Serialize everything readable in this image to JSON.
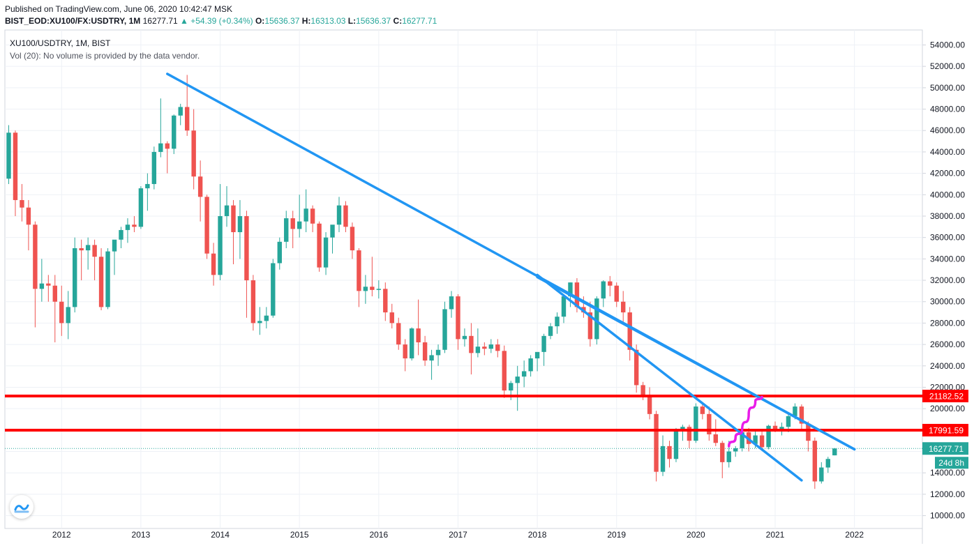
{
  "header": {
    "published": "Published on TradingView.com, June 06, 2020 10:42:47 MSK"
  },
  "symbol_line": {
    "symbol": "BIST_EOD:XU100/FX:USDTRY, 1M",
    "last": "16277.71",
    "change": "▲ +54.39 (+0.34%)",
    "o_label": "O:",
    "o": "15636.37",
    "h_label": "H:",
    "h": "16313.03",
    "l_label": "L:",
    "l": "15636.37",
    "c_label": "C:",
    "c": "16277.71"
  },
  "pane": {
    "title": "XU100/USDTRY, 1M, BIST",
    "volume_note": "Vol (20): No volume is provided by the data vendor."
  },
  "price_labels": {
    "resistance_upper": "21182.52",
    "resistance_lower": "17991.59",
    "last_price": "16277.71",
    "countdown": "24d 8h"
  },
  "colors": {
    "up": "#26a69a",
    "down": "#ef5350",
    "trendline": "#2196f3",
    "hline": "#ff0000",
    "projection": "#e91ce9",
    "grid": "#eef1f6",
    "axis_text": "#131722"
  },
  "chart_data": {
    "type": "candlestick",
    "title": "XU100/USDTRY, 1M, BIST",
    "interval": "1M",
    "x_ticks": [
      "2012",
      "2013",
      "2014",
      "2015",
      "2016",
      "2017",
      "2018",
      "2019",
      "2020",
      "2021",
      "2022"
    ],
    "y_ticks": [
      10000,
      12000,
      14000,
      16000,
      18000,
      20000,
      22000,
      24000,
      26000,
      28000,
      30000,
      32000,
      34000,
      36000,
      38000,
      40000,
      42000,
      44000,
      46000,
      48000,
      50000,
      52000,
      54000
    ],
    "y_range": [
      8800,
      55400
    ],
    "grid": true,
    "candles": [
      {
        "t": "2011-05",
        "o": 41500,
        "h": 46500,
        "l": 41000,
        "c": 45800
      },
      {
        "t": "2011-06",
        "o": 45800,
        "h": 46000,
        "l": 38000,
        "c": 39500
      },
      {
        "t": "2011-07",
        "o": 39500,
        "h": 41000,
        "l": 37500,
        "c": 38800
      },
      {
        "t": "2011-08",
        "o": 38800,
        "h": 39500,
        "l": 34800,
        "c": 37200
      },
      {
        "t": "2011-09",
        "o": 37200,
        "h": 37500,
        "l": 27600,
        "c": 31200
      },
      {
        "t": "2011-10",
        "o": 31200,
        "h": 34000,
        "l": 30000,
        "c": 31700
      },
      {
        "t": "2011-11",
        "o": 31700,
        "h": 32500,
        "l": 30000,
        "c": 31500
      },
      {
        "t": "2011-12",
        "o": 31500,
        "h": 32500,
        "l": 26200,
        "c": 30000
      },
      {
        "t": "2012-01",
        "o": 30000,
        "h": 31500,
        "l": 26800,
        "c": 28000
      },
      {
        "t": "2012-02",
        "o": 28000,
        "h": 31000,
        "l": 26500,
        "c": 29500
      },
      {
        "t": "2012-03",
        "o": 29500,
        "h": 36000,
        "l": 29000,
        "c": 35000
      },
      {
        "t": "2012-04",
        "o": 35000,
        "h": 35800,
        "l": 32000,
        "c": 34800
      },
      {
        "t": "2012-05",
        "o": 34800,
        "h": 36000,
        "l": 33000,
        "c": 35300
      },
      {
        "t": "2012-06",
        "o": 35300,
        "h": 35800,
        "l": 32000,
        "c": 34200
      },
      {
        "t": "2012-07",
        "o": 34200,
        "h": 35000,
        "l": 29200,
        "c": 29500
      },
      {
        "t": "2012-08",
        "o": 29500,
        "h": 35000,
        "l": 29300,
        "c": 34700
      },
      {
        "t": "2012-09",
        "o": 34700,
        "h": 35500,
        "l": 32500,
        "c": 35800
      },
      {
        "t": "2012-10",
        "o": 35800,
        "h": 37000,
        "l": 35000,
        "c": 36700
      },
      {
        "t": "2012-11",
        "o": 36700,
        "h": 37800,
        "l": 35500,
        "c": 37200
      },
      {
        "t": "2012-12",
        "o": 37200,
        "h": 38000,
        "l": 36500,
        "c": 37000
      },
      {
        "t": "2013-01",
        "o": 37000,
        "h": 40800,
        "l": 36800,
        "c": 40600
      },
      {
        "t": "2013-02",
        "o": 40600,
        "h": 42000,
        "l": 38500,
        "c": 41000
      },
      {
        "t": "2013-03",
        "o": 41000,
        "h": 44500,
        "l": 40500,
        "c": 44000
      },
      {
        "t": "2013-04",
        "o": 44000,
        "h": 49000,
        "l": 43500,
        "c": 44800
      },
      {
        "t": "2013-05",
        "o": 44800,
        "h": 45000,
        "l": 42000,
        "c": 44300
      },
      {
        "t": "2013-06",
        "o": 44300,
        "h": 47500,
        "l": 43800,
        "c": 47400
      },
      {
        "t": "2013-07",
        "o": 47400,
        "h": 48500,
        "l": 46500,
        "c": 48200
      },
      {
        "t": "2013-08",
        "o": 48200,
        "h": 51200,
        "l": 45500,
        "c": 46000
      },
      {
        "t": "2013-09",
        "o": 46000,
        "h": 48000,
        "l": 40500,
        "c": 41700
      },
      {
        "t": "2013-10",
        "o": 41700,
        "h": 43200,
        "l": 37500,
        "c": 39800
      },
      {
        "t": "2013-11",
        "o": 39800,
        "h": 40000,
        "l": 34000,
        "c": 34500
      },
      {
        "t": "2013-12",
        "o": 34500,
        "h": 35500,
        "l": 31500,
        "c": 32500
      },
      {
        "t": "2014-01",
        "o": 32500,
        "h": 41000,
        "l": 32000,
        "c": 38000
      },
      {
        "t": "2014-02",
        "o": 38000,
        "h": 40800,
        "l": 37000,
        "c": 39000
      },
      {
        "t": "2014-03",
        "o": 39000,
        "h": 39500,
        "l": 33500,
        "c": 36500
      },
      {
        "t": "2014-04",
        "o": 36500,
        "h": 39500,
        "l": 34000,
        "c": 38000
      },
      {
        "t": "2014-05",
        "o": 38000,
        "h": 38500,
        "l": 28500,
        "c": 32000
      },
      {
        "t": "2014-06",
        "o": 32000,
        "h": 32500,
        "l": 27300,
        "c": 28000
      },
      {
        "t": "2014-07",
        "o": 28000,
        "h": 29500,
        "l": 26900,
        "c": 28200
      },
      {
        "t": "2014-08",
        "o": 28200,
        "h": 29500,
        "l": 27500,
        "c": 28700
      },
      {
        "t": "2014-09",
        "o": 28700,
        "h": 34000,
        "l": 28500,
        "c": 33600
      },
      {
        "t": "2014-10",
        "o": 33600,
        "h": 36000,
        "l": 33000,
        "c": 35600
      },
      {
        "t": "2014-11",
        "o": 35600,
        "h": 38500,
        "l": 35000,
        "c": 37800
      },
      {
        "t": "2014-12",
        "o": 37800,
        "h": 38500,
        "l": 35000,
        "c": 36800
      },
      {
        "t": "2015-01",
        "o": 36800,
        "h": 40000,
        "l": 36000,
        "c": 37500
      },
      {
        "t": "2015-02",
        "o": 37500,
        "h": 40500,
        "l": 36500,
        "c": 38700
      },
      {
        "t": "2015-03",
        "o": 38700,
        "h": 39000,
        "l": 36500,
        "c": 37300
      },
      {
        "t": "2015-04",
        "o": 37300,
        "h": 37500,
        "l": 32800,
        "c": 33200
      },
      {
        "t": "2015-05",
        "o": 33200,
        "h": 36500,
        "l": 32500,
        "c": 36000
      },
      {
        "t": "2015-06",
        "o": 36000,
        "h": 37000,
        "l": 34500,
        "c": 37200
      },
      {
        "t": "2015-07",
        "o": 37200,
        "h": 39800,
        "l": 36500,
        "c": 39000
      },
      {
        "t": "2015-08",
        "o": 39000,
        "h": 39400,
        "l": 36500,
        "c": 37000
      },
      {
        "t": "2015-09",
        "o": 37000,
        "h": 37400,
        "l": 34000,
        "c": 34800
      },
      {
        "t": "2015-10",
        "o": 34800,
        "h": 35000,
        "l": 29500,
        "c": 31000
      },
      {
        "t": "2015-11",
        "o": 31000,
        "h": 32500,
        "l": 29800,
        "c": 31400
      },
      {
        "t": "2015-12",
        "o": 31400,
        "h": 34200,
        "l": 30500,
        "c": 31100
      },
      {
        "t": "2016-01",
        "o": 31100,
        "h": 32000,
        "l": 30300,
        "c": 31200
      },
      {
        "t": "2016-02",
        "o": 31200,
        "h": 31800,
        "l": 28200,
        "c": 29000
      },
      {
        "t": "2016-03",
        "o": 29000,
        "h": 29800,
        "l": 27500,
        "c": 28000
      },
      {
        "t": "2016-04",
        "o": 28000,
        "h": 28500,
        "l": 25500,
        "c": 26000
      },
      {
        "t": "2016-05",
        "o": 26000,
        "h": 26500,
        "l": 23500,
        "c": 24700
      },
      {
        "t": "2016-06",
        "o": 24700,
        "h": 27600,
        "l": 24500,
        "c": 27500
      },
      {
        "t": "2016-07",
        "o": 27500,
        "h": 30200,
        "l": 25000,
        "c": 26200
      },
      {
        "t": "2016-08",
        "o": 26200,
        "h": 26800,
        "l": 24000,
        "c": 24500
      },
      {
        "t": "2016-09",
        "o": 24500,
        "h": 25500,
        "l": 22700,
        "c": 25000
      },
      {
        "t": "2016-10",
        "o": 25000,
        "h": 26000,
        "l": 24000,
        "c": 25500
      },
      {
        "t": "2016-11",
        "o": 25500,
        "h": 30000,
        "l": 25200,
        "c": 29300
      },
      {
        "t": "2016-12",
        "o": 29300,
        "h": 31000,
        "l": 28500,
        "c": 30500
      },
      {
        "t": "2017-01",
        "o": 30500,
        "h": 30700,
        "l": 25500,
        "c": 26500
      },
      {
        "t": "2017-02",
        "o": 26500,
        "h": 27500,
        "l": 25800,
        "c": 26800
      },
      {
        "t": "2017-03",
        "o": 26800,
        "h": 28000,
        "l": 23200,
        "c": 25200
      },
      {
        "t": "2017-04",
        "o": 25200,
        "h": 27500,
        "l": 24800,
        "c": 25800
      },
      {
        "t": "2017-05",
        "o": 25800,
        "h": 26200,
        "l": 25000,
        "c": 25600
      },
      {
        "t": "2017-06",
        "o": 25600,
        "h": 26500,
        "l": 25200,
        "c": 26000
      },
      {
        "t": "2017-07",
        "o": 26000,
        "h": 26500,
        "l": 24800,
        "c": 25400
      },
      {
        "t": "2017-08",
        "o": 25400,
        "h": 25900,
        "l": 21000,
        "c": 21700
      },
      {
        "t": "2017-09",
        "o": 21700,
        "h": 22600,
        "l": 20800,
        "c": 22400
      },
      {
        "t": "2017-10",
        "o": 22400,
        "h": 24000,
        "l": 19800,
        "c": 23000
      },
      {
        "t": "2017-11",
        "o": 23000,
        "h": 24500,
        "l": 22000,
        "c": 23500
      },
      {
        "t": "2017-12",
        "o": 23500,
        "h": 25000,
        "l": 23000,
        "c": 24700
      },
      {
        "t": "2018-01",
        "o": 24700,
        "h": 25000,
        "l": 23500,
        "c": 25300
      },
      {
        "t": "2018-02",
        "o": 25300,
        "h": 27000,
        "l": 24000,
        "c": 26800
      },
      {
        "t": "2018-03",
        "o": 26800,
        "h": 28000,
        "l": 26500,
        "c": 27700
      },
      {
        "t": "2018-04",
        "o": 27700,
        "h": 29000,
        "l": 27000,
        "c": 28600
      },
      {
        "t": "2018-05",
        "o": 28600,
        "h": 30500,
        "l": 28000,
        "c": 30500
      },
      {
        "t": "2018-06",
        "o": 30500,
        "h": 31800,
        "l": 29500,
        "c": 31800
      },
      {
        "t": "2018-07",
        "o": 31800,
        "h": 32200,
        "l": 29000,
        "c": 29500
      },
      {
        "t": "2018-08",
        "o": 29500,
        "h": 30500,
        "l": 28500,
        "c": 29000
      },
      {
        "t": "2018-09",
        "o": 29000,
        "h": 30000,
        "l": 25800,
        "c": 26500
      },
      {
        "t": "2018-10",
        "o": 26500,
        "h": 30500,
        "l": 26000,
        "c": 30300
      },
      {
        "t": "2018-11",
        "o": 30300,
        "h": 32000,
        "l": 29500,
        "c": 31900
      },
      {
        "t": "2018-12",
        "o": 31900,
        "h": 32400,
        "l": 30500,
        "c": 31500
      },
      {
        "t": "2019-01",
        "o": 31500,
        "h": 31800,
        "l": 29500,
        "c": 30000
      },
      {
        "t": "2019-02",
        "o": 30000,
        "h": 31000,
        "l": 28000,
        "c": 29000
      },
      {
        "t": "2019-03",
        "o": 29000,
        "h": 29500,
        "l": 24500,
        "c": 25500
      },
      {
        "t": "2019-04",
        "o": 25500,
        "h": 26000,
        "l": 21500,
        "c": 22200
      },
      {
        "t": "2019-05",
        "o": 22200,
        "h": 22500,
        "l": 20800,
        "c": 21200
      },
      {
        "t": "2019-06",
        "o": 21200,
        "h": 22000,
        "l": 19000,
        "c": 19500
      },
      {
        "t": "2019-07",
        "o": 19500,
        "h": 19800,
        "l": 13200,
        "c": 14100
      },
      {
        "t": "2019-08",
        "o": 14100,
        "h": 17500,
        "l": 13700,
        "c": 16500
      },
      {
        "t": "2019-09",
        "o": 16500,
        "h": 17000,
        "l": 14500,
        "c": 15300
      },
      {
        "t": "2019-10",
        "o": 15300,
        "h": 18200,
        "l": 15000,
        "c": 17900
      },
      {
        "t": "2019-11",
        "o": 17900,
        "h": 18500,
        "l": 17000,
        "c": 18300
      },
      {
        "t": "2019-12",
        "o": 18300,
        "h": 18500,
        "l": 16300,
        "c": 17000
      },
      {
        "t": "2020-01",
        "o": 17000,
        "h": 20500,
        "l": 16800,
        "c": 20200
      },
      {
        "t": "2020-02",
        "o": 20200,
        "h": 20500,
        "l": 19000,
        "c": 19500
      },
      {
        "t": "2020-03",
        "o": 19500,
        "h": 20200,
        "l": 17000,
        "c": 17600
      },
      {
        "t": "2020-04",
        "o": 17600,
        "h": 19000,
        "l": 16500,
        "c": 16800
      },
      {
        "t": "2020-05",
        "o": 16800,
        "h": 17000,
        "l": 13500,
        "c": 15000
      },
      {
        "t": "2020-06",
        "o": 15000,
        "h": 17000,
        "l": 14500,
        "c": 16000
      },
      {
        "t": "2020-07",
        "o": 16000,
        "h": 16500,
        "l": 15500,
        "c": 16300
      },
      {
        "t": "2020-08",
        "o": 16300,
        "h": 18600,
        "l": 16000,
        "c": 17800
      },
      {
        "t": "2020-09",
        "o": 17800,
        "h": 18200,
        "l": 16000,
        "c": 16700
      },
      {
        "t": "2020-10",
        "o": 16700,
        "h": 18000,
        "l": 16300,
        "c": 17500
      },
      {
        "t": "2020-11",
        "o": 17500,
        "h": 18000,
        "l": 16200,
        "c": 16400
      },
      {
        "t": "2020-12",
        "o": 16400,
        "h": 18500,
        "l": 16200,
        "c": 18400
      },
      {
        "t": "2021-01",
        "o": 18400,
        "h": 18800,
        "l": 17800,
        "c": 18100
      },
      {
        "t": "2021-02",
        "o": 18100,
        "h": 18700,
        "l": 17500,
        "c": 18300
      },
      {
        "t": "2021-03",
        "o": 18300,
        "h": 19500,
        "l": 17800,
        "c": 19300
      },
      {
        "t": "2021-04",
        "o": 19300,
        "h": 20500,
        "l": 19000,
        "c": 20200
      },
      {
        "t": "2021-05",
        "o": 20200,
        "h": 20400,
        "l": 18000,
        "c": 18600
      },
      {
        "t": "2021-06",
        "o": 18600,
        "h": 18800,
        "l": 16000,
        "c": 17000
      },
      {
        "t": "2021-07",
        "o": 17000,
        "h": 17300,
        "l": 12500,
        "c": 13200
      },
      {
        "t": "2021-08",
        "o": 13200,
        "h": 15000,
        "l": 13000,
        "c": 14500
      },
      {
        "t": "2021-09",
        "o": 14500,
        "h": 15500,
        "l": 14000,
        "c": 15300
      },
      {
        "t": "2021-10",
        "o": 15636,
        "h": 16313,
        "l": 15636,
        "c": 16278
      }
    ],
    "horizontal_lines": [
      21182.52,
      17991.59
    ],
    "last_price": 16277.71,
    "trendlines": [
      {
        "from": {
          "x": "2013-05",
          "y": 51300
        },
        "to": {
          "x": "2022-01",
          "y": 16200
        }
      },
      {
        "from": {
          "x": "2018-01",
          "y": 32500
        },
        "to": {
          "x": "2021-05",
          "y": 13300
        }
      },
      {
        "from": {
          "x": "2018-01",
          "y": 32300
        },
        "to": {
          "x": "2022-01",
          "y": 16200
        }
      }
    ],
    "projection": [
      {
        "x": "2020-06",
        "y": 16500
      },
      {
        "x": "2020-07",
        "y": 17300
      },
      {
        "x": "2020-08",
        "y": 18000
      },
      {
        "x": "2020-09",
        "y": 19500
      },
      {
        "x": "2020-10",
        "y": 20700
      },
      {
        "x": "2020-11",
        "y": 21100
      }
    ]
  }
}
